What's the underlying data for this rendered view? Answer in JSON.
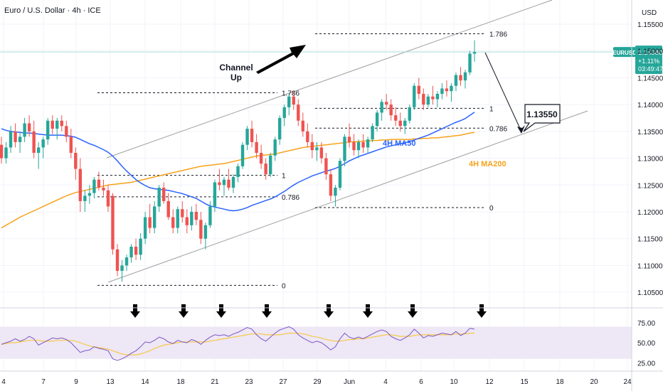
{
  "header": {
    "symbol_title": "Euro / U.S. Dollar · 4h · ICE",
    "currency": "USD"
  },
  "price_badge": {
    "ticker": "EURUSD",
    "price": "1.14980",
    "change": "+1.11%",
    "countdown": "03:49:47"
  },
  "colors": {
    "bull": "#26a69a",
    "bear": "#ef5350",
    "ma50": "#2962ff",
    "ma200": "#f7a21b",
    "rsi": "#7e57c2",
    "rsi_ma": "#f7c948",
    "rsi_band": "#ede7f6",
    "channel": "#9e9e9e",
    "current_price_line": "#b2dfdb"
  },
  "chart_data": {
    "type": "candlestick",
    "title": "Euro / U.S. Dollar · 4h · ICE",
    "price_axis": {
      "ticks": [
        "1.15500",
        "1.15000",
        "1.14500",
        "1.14000",
        "1.13500",
        "1.13000",
        "1.12500",
        "1.12000",
        "1.11500",
        "1.11000",
        "1.10500"
      ],
      "range": [
        1.1025,
        1.1595
      ]
    },
    "time_axis": {
      "ticks": [
        "4",
        "7",
        "9",
        "13",
        "14",
        "18",
        "21",
        "23",
        "27",
        "29",
        "Jun",
        "4",
        "6",
        "10",
        "12",
        "15",
        "18",
        "20",
        "24"
      ]
    },
    "annotations": {
      "channel_label": "Channel\nUp",
      "target_label": "1.13550",
      "ma50_label": "4H MA50",
      "ma200_label": "4H MA200",
      "fib_sets": [
        {
          "name": "first",
          "levels": [
            {
              "label": "1.786",
              "price": 1.1422
            },
            {
              "label": "1",
              "price": 1.1268
            },
            {
              "label": "0.786",
              "price": 1.1228
            },
            {
              "label": "0",
              "price": 1.1063
            }
          ]
        },
        {
          "name": "second",
          "levels": [
            {
              "label": "1.786",
              "price": 1.1532
            },
            {
              "label": "1",
              "price": 1.1393
            },
            {
              "label": "0.786",
              "price": 1.1356
            },
            {
              "label": "0",
              "price": 1.1208
            }
          ]
        }
      ]
    },
    "rsi": {
      "ticks": [
        "75.00",
        "50.00",
        "25.00"
      ],
      "range": [
        20,
        90
      ],
      "band": [
        30,
        70
      ],
      "signal_arrows": 8
    },
    "candles_ohlc": [
      [
        1.1325,
        1.134,
        1.129,
        1.13
      ],
      [
        1.13,
        1.133,
        1.129,
        1.132
      ],
      [
        1.132,
        1.136,
        1.131,
        1.135
      ],
      [
        1.135,
        1.1365,
        1.132,
        1.133
      ],
      [
        1.133,
        1.135,
        1.131,
        1.134
      ],
      [
        1.134,
        1.1375,
        1.133,
        1.1365
      ],
      [
        1.1365,
        1.138,
        1.134,
        1.135
      ],
      [
        1.135,
        1.137,
        1.13,
        1.131
      ],
      [
        1.131,
        1.133,
        1.128,
        1.132
      ],
      [
        1.132,
        1.134,
        1.13,
        1.1335
      ],
      [
        1.1335,
        1.1375,
        1.1325,
        1.137
      ],
      [
        1.137,
        1.138,
        1.1345,
        1.1355
      ],
      [
        1.1355,
        1.1375,
        1.1335,
        1.137
      ],
      [
        1.137,
        1.138,
        1.135,
        1.136
      ],
      [
        1.136,
        1.137,
        1.133,
        1.134
      ],
      [
        1.134,
        1.1355,
        1.13,
        1.131
      ],
      [
        1.131,
        1.132,
        1.126,
        1.128
      ],
      [
        1.128,
        1.13,
        1.12,
        1.122
      ],
      [
        1.122,
        1.124,
        1.12,
        1.123
      ],
      [
        1.123,
        1.125,
        1.1215,
        1.1235
      ],
      [
        1.1235,
        1.1265,
        1.1225,
        1.126
      ],
      [
        1.126,
        1.1275,
        1.124,
        1.1245
      ],
      [
        1.1245,
        1.126,
        1.123,
        1.124
      ],
      [
        1.124,
        1.125,
        1.12,
        1.121
      ],
      [
        1.123,
        1.1235,
        1.112,
        1.113
      ],
      [
        1.113,
        1.114,
        1.108,
        1.109
      ],
      [
        1.109,
        1.111,
        1.107,
        1.11
      ],
      [
        1.11,
        1.112,
        1.109,
        1.1115
      ],
      [
        1.1115,
        1.114,
        1.1105,
        1.1135
      ],
      [
        1.1135,
        1.115,
        1.111,
        1.112
      ],
      [
        1.112,
        1.116,
        1.111,
        1.115
      ],
      [
        1.115,
        1.12,
        1.114,
        1.119
      ],
      [
        1.119,
        1.1215,
        1.116,
        1.117
      ],
      [
        1.117,
        1.122,
        1.116,
        1.121
      ],
      [
        1.121,
        1.125,
        1.12,
        1.1245
      ],
      [
        1.1245,
        1.1255,
        1.1215,
        1.122
      ],
      [
        1.122,
        1.1235,
        1.1185,
        1.119
      ],
      [
        1.119,
        1.1205,
        1.116,
        1.117
      ],
      [
        1.117,
        1.121,
        1.116,
        1.1205
      ],
      [
        1.1205,
        1.122,
        1.118,
        1.119
      ],
      [
        1.119,
        1.1205,
        1.116,
        1.1175
      ],
      [
        1.1175,
        1.121,
        1.1165,
        1.12
      ],
      [
        1.12,
        1.1215,
        1.1175,
        1.1185
      ],
      [
        1.1185,
        1.12,
        1.114,
        1.115
      ],
      [
        1.115,
        1.118,
        1.113,
        1.1175
      ],
      [
        1.1175,
        1.122,
        1.117,
        1.121
      ],
      [
        1.121,
        1.126,
        1.12,
        1.1255
      ],
      [
        1.1255,
        1.128,
        1.124,
        1.125
      ],
      [
        1.125,
        1.1265,
        1.123,
        1.126
      ],
      [
        1.126,
        1.128,
        1.124,
        1.1245
      ],
      [
        1.1245,
        1.127,
        1.1235,
        1.1265
      ],
      [
        1.1265,
        1.129,
        1.1255,
        1.1285
      ],
      [
        1.1285,
        1.133,
        1.128,
        1.1325
      ],
      [
        1.1325,
        1.136,
        1.1315,
        1.1355
      ],
      [
        1.1355,
        1.137,
        1.132,
        1.133
      ],
      [
        1.133,
        1.1345,
        1.13,
        1.131
      ],
      [
        1.131,
        1.1325,
        1.128,
        1.129
      ],
      [
        1.129,
        1.13,
        1.126,
        1.127
      ],
      [
        1.127,
        1.131,
        1.1265,
        1.1305
      ],
      [
        1.1305,
        1.134,
        1.1295,
        1.1335
      ],
      [
        1.1335,
        1.138,
        1.1325,
        1.1375
      ],
      [
        1.1375,
        1.14,
        1.136,
        1.1395
      ],
      [
        1.1395,
        1.142,
        1.138,
        1.1415
      ],
      [
        1.1415,
        1.1425,
        1.139,
        1.14
      ],
      [
        1.14,
        1.141,
        1.136,
        1.137
      ],
      [
        1.137,
        1.1385,
        1.134,
        1.135
      ],
      [
        1.135,
        1.1365,
        1.132,
        1.133
      ],
      [
        1.133,
        1.1345,
        1.13,
        1.1315
      ],
      [
        1.1315,
        1.133,
        1.1295,
        1.132
      ],
      [
        1.132,
        1.133,
        1.129,
        1.13
      ],
      [
        1.13,
        1.131,
        1.126,
        1.127
      ],
      [
        1.127,
        1.128,
        1.122,
        1.123
      ],
      [
        1.123,
        1.125,
        1.121,
        1.1245
      ],
      [
        1.1245,
        1.13,
        1.124,
        1.1295
      ],
      [
        1.1295,
        1.1345,
        1.1285,
        1.134
      ],
      [
        1.134,
        1.1365,
        1.132,
        1.133
      ],
      [
        1.133,
        1.1345,
        1.1305,
        1.1315
      ],
      [
        1.1315,
        1.1335,
        1.13,
        1.133
      ],
      [
        1.133,
        1.1345,
        1.131,
        1.132
      ],
      [
        1.132,
        1.134,
        1.131,
        1.1335
      ],
      [
        1.1335,
        1.1365,
        1.133,
        1.136
      ],
      [
        1.136,
        1.139,
        1.135,
        1.1385
      ],
      [
        1.1385,
        1.141,
        1.137,
        1.1405
      ],
      [
        1.1405,
        1.142,
        1.139,
        1.14
      ],
      [
        1.14,
        1.141,
        1.137,
        1.138
      ],
      [
        1.138,
        1.1395,
        1.136,
        1.137
      ],
      [
        1.137,
        1.1385,
        1.135,
        1.136
      ],
      [
        1.136,
        1.1375,
        1.1345,
        1.137
      ],
      [
        1.137,
        1.14,
        1.1365,
        1.1395
      ],
      [
        1.1395,
        1.144,
        1.139,
        1.1435
      ],
      [
        1.1435,
        1.145,
        1.141,
        1.142
      ],
      [
        1.142,
        1.143,
        1.139,
        1.14
      ],
      [
        1.14,
        1.142,
        1.1395,
        1.1415
      ],
      [
        1.1415,
        1.1435,
        1.14,
        1.141
      ],
      [
        1.141,
        1.1425,
        1.1395,
        1.142
      ],
      [
        1.142,
        1.144,
        1.141,
        1.143
      ],
      [
        1.143,
        1.1445,
        1.1415,
        1.1425
      ],
      [
        1.1425,
        1.144,
        1.1405,
        1.1435
      ],
      [
        1.1435,
        1.146,
        1.1425,
        1.1455
      ],
      [
        1.1455,
        1.147,
        1.1435,
        1.1445
      ],
      [
        1.1445,
        1.1465,
        1.143,
        1.146
      ],
      [
        1.146,
        1.15,
        1.1455,
        1.1495
      ],
      [
        1.1495,
        1.152,
        1.148,
        1.1498
      ]
    ],
    "rsi_values": [
      48,
      50,
      52,
      55,
      52,
      54,
      58,
      55,
      47,
      50,
      53,
      56,
      55,
      56,
      54,
      50,
      44,
      38,
      40,
      41,
      45,
      43,
      42,
      40,
      30,
      28,
      30,
      33,
      37,
      40,
      45,
      51,
      50,
      53,
      57,
      55,
      51,
      49,
      53,
      51,
      50,
      54,
      52,
      48,
      53,
      57,
      60,
      59,
      60,
      58,
      61,
      63,
      66,
      69,
      67,
      60,
      55,
      52,
      57,
      62,
      66,
      68,
      70,
      67,
      60,
      56,
      53,
      50,
      52,
      50,
      46,
      41,
      45,
      55,
      62,
      57,
      55,
      57,
      55,
      58,
      61,
      64,
      66,
      64,
      58,
      55,
      53,
      56,
      60,
      67,
      62,
      56,
      59,
      58,
      60,
      62,
      61,
      60,
      64,
      59,
      62,
      68,
      67
    ],
    "rsi_ma_values": [
      48,
      49,
      50,
      50,
      51,
      52,
      53,
      53,
      53,
      52,
      52,
      52,
      53,
      53,
      53,
      53,
      52,
      50,
      48,
      46,
      45,
      44,
      43,
      42,
      40,
      38,
      36,
      35,
      35,
      35,
      36,
      38,
      40,
      43,
      45,
      47,
      48,
      49,
      50,
      51,
      51,
      51,
      51,
      51,
      51,
      52,
      53,
      54,
      55,
      56,
      57,
      58,
      59,
      60,
      61,
      61,
      61,
      60,
      60,
      60,
      60,
      61,
      62,
      62,
      62,
      61,
      60,
      58,
      57,
      56,
      54,
      53,
      52,
      52,
      53,
      54,
      54,
      55,
      55,
      56,
      57,
      58,
      59,
      60,
      60,
      59,
      58,
      58,
      58,
      59,
      60,
      60,
      60,
      60,
      60,
      60,
      60,
      60,
      61,
      61,
      61,
      62,
      62
    ],
    "ma50_values": [
      1.1355,
      1.1352,
      1.135,
      1.1349,
      1.1348,
      1.1347,
      1.1347,
      1.1346,
      1.1345,
      1.1344,
      1.1343,
      1.1343,
      1.1343,
      1.1343,
      1.1342,
      1.1341,
      1.1339,
      1.1335,
      1.1331,
      1.1327,
      1.1324,
      1.132,
      1.1316,
      1.1311,
      1.1304,
      1.1295,
      1.1285,
      1.1276,
      1.1268,
      1.126,
      1.1254,
      1.1249,
      1.1245,
      1.1243,
      1.1242,
      1.1241,
      1.124,
      1.1238,
      1.1236,
      1.1234,
      1.1231,
      1.1228,
      1.1225,
      1.122,
      1.1215,
      1.1211,
      1.1209,
      1.1207,
      1.1205,
      1.1203,
      1.1202,
      1.1203,
      1.1205,
      1.1208,
      1.1212,
      1.1215,
      1.1218,
      1.1221,
      1.1224,
      1.1228,
      1.1233,
      1.1238,
      1.1244,
      1.125,
      1.1255,
      1.1259,
      1.1263,
      1.1267,
      1.127,
      1.1273,
      1.1276,
      1.1278,
      1.1281,
      1.1285,
      1.129,
      1.1295,
      1.1299,
      1.1303,
      1.1306,
      1.1309,
      1.1312,
      1.1315,
      1.1318,
      1.1321,
      1.1323,
      1.1325,
      1.1327,
      1.1329,
      1.1331,
      1.1334,
      1.1337,
      1.134,
      1.1343,
      1.1347,
      1.1351,
      1.1355,
      1.1359,
      1.1363,
      1.1367,
      1.137,
      1.1374,
      1.138,
      1.1386
    ],
    "ma200_values": [
      1.117,
      1.1175,
      1.118,
      1.1185,
      1.119,
      1.1194,
      1.1198,
      1.1202,
      1.1206,
      1.121,
      1.1214,
      1.1218,
      1.1222,
      1.1226,
      1.123,
      1.1233,
      1.1236,
      1.1238,
      1.124,
      1.1242,
      1.1244,
      1.1246,
      1.1248,
      1.125,
      1.1251,
      1.1252,
      1.1253,
      1.1254,
      1.1255,
      1.1257,
      1.1259,
      1.1261,
      1.1263,
      1.1265,
      1.1267,
      1.1269,
      1.1271,
      1.1273,
      1.1275,
      1.1277,
      1.1279,
      1.1281,
      1.1283,
      1.1285,
      1.1286,
      1.1287,
      1.1288,
      1.1289,
      1.129,
      1.1292,
      1.1294,
      1.1296,
      1.1298,
      1.13,
      1.1302,
      1.1304,
      1.1305,
      1.1306,
      1.1307,
      1.1308,
      1.131,
      1.1312,
      1.1314,
      1.1316,
      1.1318,
      1.132,
      1.1321,
      1.1322,
      1.1323,
      1.1324,
      1.1325,
      1.1326,
      1.1327,
      1.1328,
      1.1329,
      1.133,
      1.1331,
      1.1331,
      1.1332,
      1.1332,
      1.1333,
      1.1333,
      1.1334,
      1.1334,
      1.1335,
      1.1335,
      1.1335,
      1.1335,
      1.1335,
      1.1336,
      1.1336,
      1.1337,
      1.1337,
      1.1338,
      1.1338,
      1.1339,
      1.134,
      1.1341,
      1.1342,
      1.1343,
      1.1345,
      1.1347,
      1.1348
    ]
  }
}
